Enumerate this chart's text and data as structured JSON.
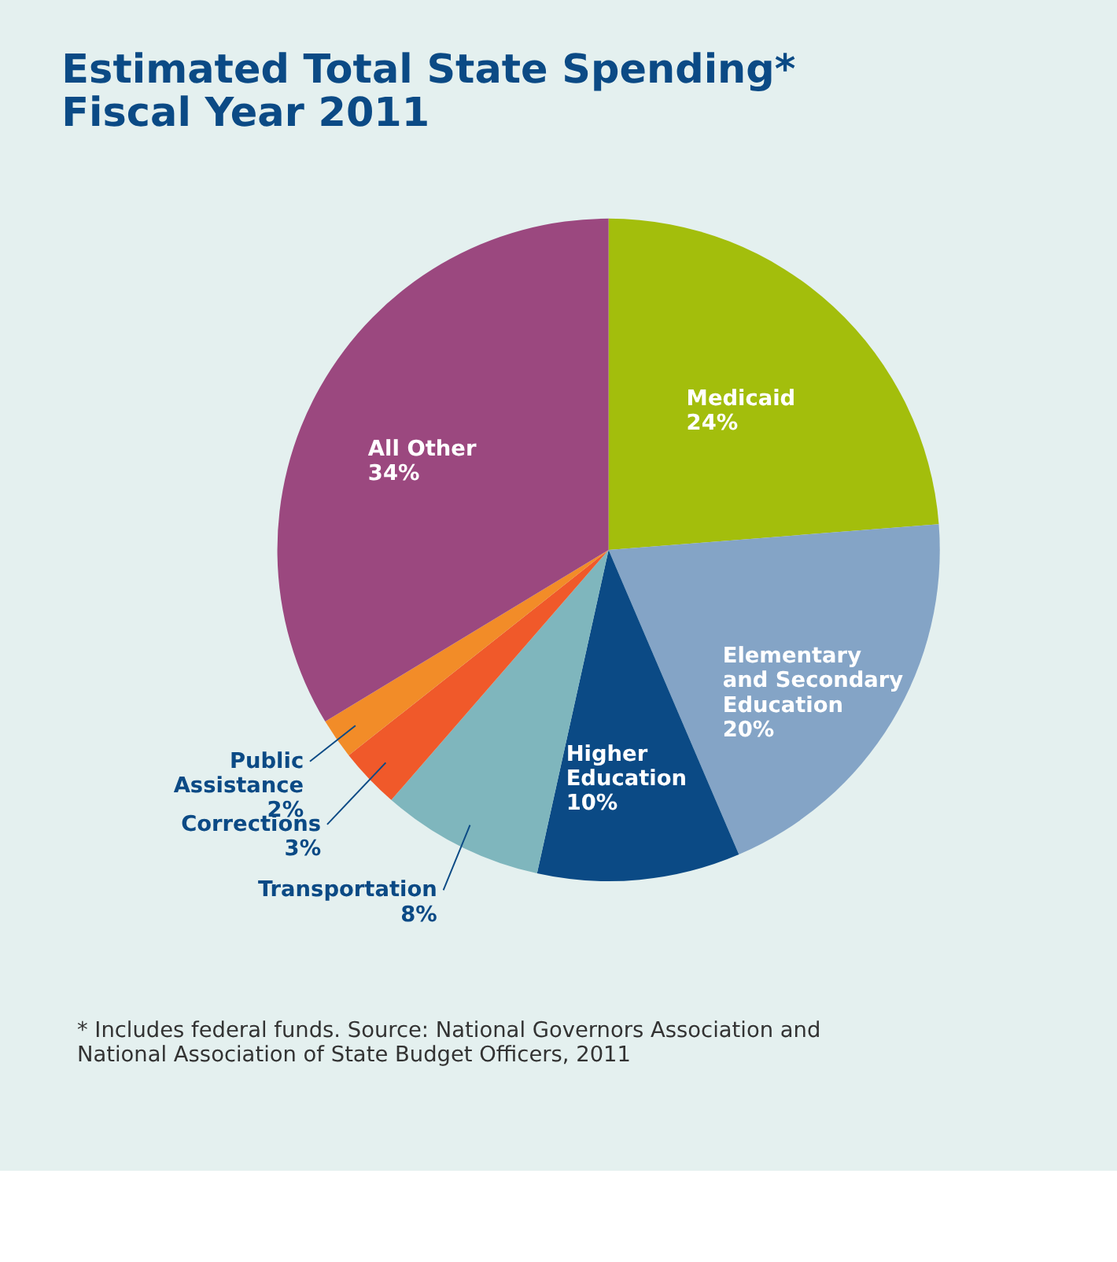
{
  "chart_data": {
    "type": "pie",
    "title": "Estimated Total State Spending*\nFiscal Year 2011",
    "categories": [
      "Medicaid",
      "Elementary\nand Secondary\nEducation",
      "Higher\nEducation",
      "Transportation",
      "Corrections",
      "Public\nAssistance",
      "All Other"
    ],
    "values": [
      24,
      20,
      10,
      8,
      3,
      2,
      34
    ],
    "value_labels": [
      "24%",
      "20%",
      "10%",
      "8%",
      "3%",
      "2%",
      "34%"
    ],
    "colors": [
      "#a3be0c",
      "#84a4c6",
      "#0b4a85",
      "#7fb6bd",
      "#f0592a",
      "#f28c28",
      "#9b487f"
    ],
    "annotations": [
      "* Includes federal funds. Source: National Governors Association and\nNational Association of State Budget Officers, 2011"
    ],
    "legend": false
  }
}
